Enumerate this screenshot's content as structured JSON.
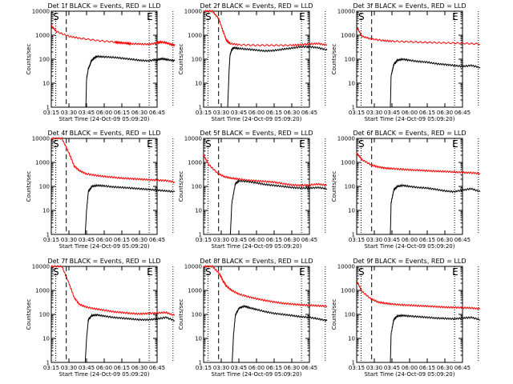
{
  "chart_data": [
    {
      "type": "line",
      "title": "Det 1f BLACK = Events, RED = LLD",
      "xlabel": "Start Time (24-Oct-09 05:09:20)",
      "ylabel": "Counts/sec",
      "y_scale": "log",
      "ylim": [
        1,
        10000
      ],
      "xlim": [
        "03:15",
        "06:45"
      ],
      "x_ticks": [
        "03:15",
        "03:30",
        "03:45",
        "06:00",
        "06:15",
        "06:30",
        "06:45"
      ],
      "y_ticks": [
        "1",
        "10",
        "100",
        "1000",
        "10000"
      ],
      "markers": [
        "S",
        "E"
      ],
      "series": [
        {
          "color": "#ff0000",
          "x": [
            0,
            0.3,
            1.0,
            1.6,
            2.6,
            3.6,
            3.75,
            4.0,
            4.3,
            4.5,
            5.0,
            5.5,
            6.0,
            6.2,
            6.5,
            6.8,
            7.0
          ],
          "values": [
            2500,
            1400,
            900,
            750,
            600,
            520,
            500,
            480,
            460,
            440,
            430,
            420,
            470,
            520,
            490,
            410,
            380
          ]
        },
        {
          "color": "#000000",
          "x": [
            1.6,
            1.95,
            2.0,
            2.1,
            2.2,
            2.25,
            2.4,
            2.6,
            3.0,
            3.5,
            4.0,
            4.5,
            5.0,
            5.5,
            6.0,
            6.3,
            6.6,
            7.0
          ],
          "values": [
            0,
            0,
            15,
            40,
            60,
            80,
            110,
            130,
            125,
            120,
            110,
            100,
            90,
            85,
            95,
            105,
            95,
            85
          ]
        }
      ]
    },
    {
      "type": "line",
      "title": "Det 2f BLACK = Events, RED = LLD",
      "xlabel": "Start Time (24-Oct-09 05:09:20)",
      "ylabel": "Counts/sec",
      "y_scale": "log",
      "ylim": [
        1,
        10000
      ],
      "xlim": [
        "03:15",
        "06:45"
      ],
      "x_ticks": [
        "03:15",
        "03:30",
        "03:45",
        "06:00",
        "06:15",
        "06:30",
        "06:45"
      ],
      "y_ticks": [
        "1",
        "10",
        "100",
        "1000",
        "10000"
      ],
      "markers": [
        "S",
        "E"
      ],
      "series": [
        {
          "color": "#ff0000",
          "x": [
            0,
            0.5,
            0.85,
            1.1,
            1.3,
            1.5,
            2.0,
            3.0,
            4.0,
            5.0,
            5.5,
            6.0,
            6.5,
            7.0
          ],
          "values": [
            10000,
            10000,
            5000,
            1500,
            600,
            450,
            400,
            380,
            380,
            380,
            400,
            430,
            450,
            380
          ]
        },
        {
          "color": "#000000",
          "x": [
            1.35,
            1.45,
            1.5,
            1.6,
            1.7,
            2.0,
            2.5,
            3.0,
            3.5,
            4.0,
            4.5,
            5.0,
            5.5,
            6.0,
            6.5,
            7.0
          ],
          "values": [
            0,
            40,
            150,
            250,
            300,
            280,
            260,
            240,
            220,
            230,
            260,
            290,
            330,
            330,
            300,
            240
          ]
        }
      ]
    },
    {
      "type": "line",
      "title": "Det 3f BLACK = Events, RED = LLD",
      "xlabel": "Start Time (24-Oct-09 05:09:20)",
      "ylabel": "Counts/sec",
      "y_scale": "log",
      "ylim": [
        1,
        10000
      ],
      "xlim": [
        "03:15",
        "06:45"
      ],
      "x_ticks": [
        "03:15",
        "03:30",
        "03:45",
        "06:00",
        "06:15",
        "06:30",
        "06:45"
      ],
      "y_ticks": [
        "1",
        "10",
        "100",
        "1000",
        "10000"
      ],
      "markers": [
        "S",
        "E"
      ],
      "series": [
        {
          "color": "#ff0000",
          "x": [
            0,
            0.3,
            0.8,
            1.5,
            2.0,
            3.0,
            4.0,
            5.0,
            6.0,
            7.0
          ],
          "values": [
            2200,
            900,
            700,
            600,
            560,
            530,
            500,
            480,
            460,
            430
          ]
        },
        {
          "color": "#000000",
          "x": [
            1.6,
            1.9,
            1.95,
            2.1,
            2.3,
            2.6,
            3.0,
            3.5,
            4.0,
            4.5,
            5.0,
            5.5,
            6.0,
            6.5,
            7.0
          ],
          "values": [
            0,
            0,
            20,
            60,
            90,
            100,
            90,
            80,
            75,
            65,
            60,
            55,
            50,
            55,
            45
          ]
        }
      ]
    },
    {
      "type": "line",
      "title": "Det 4f BLACK = Events, RED = LLD",
      "xlabel": "Start Time (24-Oct-09 05:09:20)",
      "ylabel": "Counts/sec",
      "y_scale": "log",
      "ylim": [
        1,
        10000
      ],
      "xlim": [
        "03:15",
        "06:45"
      ],
      "x_ticks": [
        "03:15",
        "03:30",
        "03:45",
        "06:00",
        "06:15",
        "06:30",
        "06:45"
      ],
      "y_ticks": [
        "1",
        "10",
        "100",
        "1000",
        "10000"
      ],
      "markers": [
        "S",
        "E"
      ],
      "series": [
        {
          "color": "#ff0000",
          "x": [
            0,
            0.6,
            1.0,
            1.3,
            1.6,
            2.0,
            2.5,
            3.0,
            3.5,
            4.0,
            4.5,
            5.0,
            5.5,
            6.0,
            6.5,
            7.0
          ],
          "values": [
            10000,
            10000,
            2500,
            700,
            450,
            330,
            290,
            260,
            240,
            220,
            210,
            200,
            190,
            180,
            175,
            150
          ]
        },
        {
          "color": "#000000",
          "x": [
            1.7,
            1.9,
            2.0,
            2.1,
            2.3,
            2.6,
            3.0,
            3.5,
            4.0,
            4.5,
            5.0,
            5.5,
            6.0,
            6.5,
            7.0
          ],
          "values": [
            0,
            0,
            10,
            60,
            100,
            110,
            105,
            95,
            90,
            85,
            80,
            75,
            70,
            65,
            60
          ]
        }
      ]
    },
    {
      "type": "line",
      "title": "Det 5f BLACK = Events, RED = LLD",
      "xlabel": "Start Time (24-Oct-09 05:09:20)",
      "ylabel": "Counts/sec",
      "y_scale": "log",
      "ylim": [
        1,
        10000
      ],
      "xlim": [
        "03:15",
        "06:45"
      ],
      "x_ticks": [
        "03:15",
        "03:30",
        "03:45",
        "06:00",
        "06:15",
        "06:30",
        "06:45"
      ],
      "y_ticks": [
        "1",
        "10",
        "100",
        "1000",
        "10000"
      ],
      "markers": [
        "S",
        "E"
      ],
      "series": [
        {
          "color": "#ff0000",
          "x": [
            0,
            0.3,
            0.8,
            1.2,
            1.6,
            2.0,
            2.5,
            3.0,
            3.5,
            4.0,
            4.5,
            5.0,
            5.5,
            6.0,
            6.5,
            7.0
          ],
          "values": [
            2000,
            800,
            350,
            250,
            220,
            200,
            180,
            170,
            160,
            150,
            130,
            115,
            110,
            115,
            125,
            110
          ]
        },
        {
          "color": "#000000",
          "x": [
            1.3,
            1.5,
            1.6,
            1.8,
            2.0,
            2.5,
            3.0,
            3.5,
            4.0,
            4.5,
            5.0,
            5.5,
            6.0,
            6.5,
            7.0
          ],
          "values": [
            0,
            0,
            20,
            130,
            170,
            160,
            140,
            120,
            110,
            100,
            90,
            85,
            85,
            90,
            80
          ]
        }
      ]
    },
    {
      "type": "line",
      "title": "Det 6f BLACK = Events, RED = LLD",
      "xlabel": "Start Time (24-Oct-09 05:09:20)",
      "ylabel": "Counts/sec",
      "y_scale": "log",
      "ylim": [
        1,
        10000
      ],
      "xlim": [
        "03:15",
        "06:45"
      ],
      "x_ticks": [
        "03:15",
        "03:30",
        "03:45",
        "06:00",
        "06:15",
        "06:30",
        "06:45"
      ],
      "y_ticks": [
        "1",
        "10",
        "100",
        "1000",
        "10000"
      ],
      "markers": [
        "S",
        "E"
      ],
      "series": [
        {
          "color": "#ff0000",
          "x": [
            0,
            0.3,
            0.8,
            1.2,
            1.6,
            2.0,
            2.5,
            3.0,
            3.5,
            4.0,
            4.5,
            5.0,
            5.5,
            6.0,
            6.5,
            7.0
          ],
          "values": [
            2500,
            1300,
            800,
            650,
            580,
            550,
            520,
            490,
            470,
            450,
            430,
            420,
            400,
            380,
            370,
            340
          ]
        },
        {
          "color": "#000000",
          "x": [
            1.6,
            1.9,
            1.95,
            2.1,
            2.3,
            2.6,
            3.0,
            3.5,
            4.0,
            4.5,
            5.0,
            5.5,
            6.0,
            6.5,
            7.0
          ],
          "values": [
            0,
            0,
            20,
            70,
            100,
            110,
            100,
            90,
            85,
            75,
            65,
            60,
            70,
            80,
            60
          ]
        }
      ]
    },
    {
      "type": "line",
      "title": "Det 7f BLACK = Events, RED = LLD",
      "xlabel": "Start Time (24-Oct-09 05:09:20)",
      "ylabel": "Counts/sec",
      "y_scale": "log",
      "ylim": [
        1,
        10000
      ],
      "xlim": [
        "03:15",
        "06:45"
      ],
      "x_ticks": [
        "03:15",
        "03:30",
        "03:45",
        "06:00",
        "06:15",
        "06:30",
        "06:45"
      ],
      "y_ticks": [
        "1",
        "10",
        "100",
        "1000",
        "10000"
      ],
      "markers": [
        "S",
        "E"
      ],
      "series": [
        {
          "color": "#ff0000",
          "x": [
            0,
            0.6,
            1.0,
            1.3,
            1.6,
            2.0,
            2.5,
            3.0,
            3.5,
            4.0,
            4.5,
            5.0,
            5.5,
            6.0,
            6.5,
            7.0
          ],
          "values": [
            10000,
            10000,
            2000,
            500,
            260,
            200,
            170,
            150,
            130,
            120,
            110,
            105,
            110,
            115,
            120,
            90
          ]
        },
        {
          "color": "#000000",
          "x": [
            1.6,
            1.9,
            2.0,
            2.1,
            2.3,
            2.6,
            3.0,
            3.5,
            4.0,
            4.5,
            5.0,
            5.5,
            6.0,
            6.5,
            7.0
          ],
          "values": [
            0,
            0,
            10,
            60,
            90,
            95,
            85,
            75,
            70,
            65,
            60,
            60,
            65,
            75,
            55
          ]
        }
      ]
    },
    {
      "type": "line",
      "title": "Det 8f BLACK = Events, RED = LLD",
      "xlabel": "Start Time (24-Oct-09 05:09:20)",
      "ylabel": "Counts/sec",
      "y_scale": "log",
      "ylim": [
        1,
        10000
      ],
      "xlim": [
        "03:15",
        "06:45"
      ],
      "x_ticks": [
        "03:15",
        "03:30",
        "03:45",
        "06:00",
        "06:15",
        "06:30",
        "06:45"
      ],
      "y_ticks": [
        "1",
        "10",
        "100",
        "1000",
        "10000"
      ],
      "markers": [
        "S",
        "E"
      ],
      "series": [
        {
          "color": "#ff0000",
          "x": [
            0,
            0.5,
            0.9,
            1.1,
            1.3,
            1.6,
            2.0,
            2.5,
            3.0,
            3.5,
            4.0,
            4.5,
            5.0,
            5.5,
            6.0,
            6.5,
            7.0
          ],
          "values": [
            10000,
            10000,
            5000,
            2500,
            1500,
            1000,
            700,
            550,
            450,
            380,
            330,
            290,
            270,
            250,
            240,
            230,
            220
          ]
        },
        {
          "color": "#000000",
          "x": [
            1.3,
            1.6,
            1.7,
            1.8,
            2.0,
            2.3,
            2.6,
            3.0,
            3.5,
            4.0,
            4.5,
            5.0,
            5.5,
            6.0,
            6.5,
            7.0
          ],
          "values": [
            0,
            0,
            15,
            90,
            180,
            220,
            190,
            160,
            130,
            110,
            100,
            90,
            80,
            75,
            65,
            55
          ]
        }
      ]
    },
    {
      "type": "line",
      "title": "Det 9f BLACK = Events, RED = LLD",
      "xlabel": "Start Time (24-Oct-09 05:09:20)",
      "ylabel": "Counts/sec",
      "y_scale": "log",
      "ylim": [
        1,
        10000
      ],
      "xlim": [
        "03:15",
        "06:45"
      ],
      "x_ticks": [
        "03:15",
        "03:30",
        "03:45",
        "06:00",
        "06:15",
        "06:30",
        "06:45"
      ],
      "y_ticks": [
        "1",
        "10",
        "100",
        "1000",
        "10000"
      ],
      "markers": [
        "S",
        "E"
      ],
      "series": [
        {
          "color": "#ff0000",
          "x": [
            0,
            0.3,
            0.8,
            1.2,
            1.6,
            2.0,
            2.5,
            3.0,
            3.5,
            4.0,
            4.5,
            5.0,
            5.5,
            6.0,
            6.5,
            7.0
          ],
          "values": [
            2500,
            900,
            450,
            330,
            290,
            270,
            250,
            240,
            230,
            220,
            210,
            200,
            195,
            190,
            185,
            170
          ]
        },
        {
          "color": "#000000",
          "x": [
            1.6,
            1.9,
            1.95,
            2.1,
            2.3,
            2.6,
            3.0,
            3.5,
            4.0,
            4.5,
            5.0,
            5.5,
            6.0,
            6.5,
            7.0
          ],
          "values": [
            0,
            0,
            15,
            60,
            85,
            90,
            85,
            80,
            75,
            70,
            68,
            65,
            70,
            75,
            60
          ]
        }
      ]
    }
  ]
}
